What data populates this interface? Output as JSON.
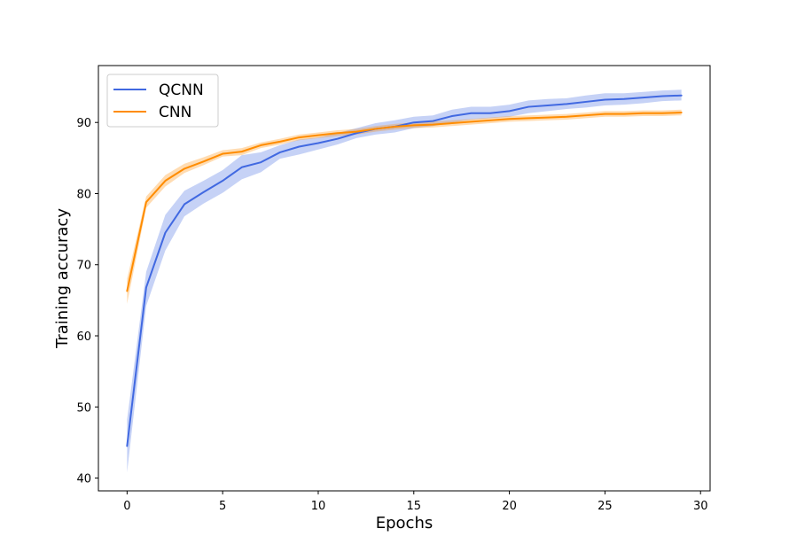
{
  "chart_data": {
    "type": "line",
    "xlabel": "Epochs",
    "ylabel": "Training accuracy",
    "xlim": [
      -1.5,
      30.5
    ],
    "ylim": [
      38.2,
      98.0
    ],
    "xticks": [
      0,
      5,
      10,
      15,
      20,
      25,
      30
    ],
    "yticks": [
      40,
      50,
      60,
      70,
      80,
      90
    ],
    "grid": false,
    "legend": "upper-left",
    "x": [
      0,
      1,
      2,
      3,
      4,
      5,
      6,
      7,
      8,
      9,
      10,
      11,
      12,
      13,
      14,
      15,
      16,
      17,
      18,
      19,
      20,
      21,
      22,
      23,
      24,
      25,
      26,
      27,
      28,
      29
    ],
    "series": [
      {
        "name": "QCNN",
        "color": "#4169E1",
        "values": [
          44.5,
          66.8,
          74.5,
          78.5,
          80.2,
          81.8,
          83.7,
          84.4,
          85.8,
          86.6,
          87.1,
          87.7,
          88.5,
          89.1,
          89.4,
          90.0,
          90.2,
          90.9,
          91.3,
          91.3,
          91.6,
          92.2,
          92.4,
          92.6,
          92.9,
          93.2,
          93.3,
          93.5,
          93.7,
          93.8
        ],
        "lower": [
          40.8,
          64.2,
          72.0,
          76.8,
          78.6,
          80.1,
          82.0,
          83.0,
          84.9,
          85.5,
          86.2,
          86.9,
          87.8,
          88.3,
          88.6,
          89.2,
          89.5,
          90.0,
          90.4,
          90.6,
          90.8,
          91.3,
          91.6,
          91.9,
          92.1,
          92.4,
          92.5,
          92.7,
          93.0,
          93.1
        ],
        "upper": [
          48.2,
          69.0,
          77.0,
          80.4,
          81.8,
          83.3,
          85.4,
          85.8,
          86.8,
          87.6,
          87.9,
          88.5,
          89.2,
          89.9,
          90.3,
          90.8,
          91.0,
          91.8,
          92.2,
          92.2,
          92.5,
          93.1,
          93.3,
          93.4,
          93.8,
          94.1,
          94.1,
          94.3,
          94.5,
          94.6
        ]
      },
      {
        "name": "CNN",
        "color": "#FF8C00",
        "values": [
          66.3,
          78.8,
          81.8,
          83.5,
          84.5,
          85.6,
          85.9,
          86.8,
          87.3,
          87.9,
          88.2,
          88.5,
          88.7,
          89.1,
          89.4,
          89.6,
          89.7,
          89.9,
          90.1,
          90.3,
          90.5,
          90.6,
          90.7,
          90.8,
          91.0,
          91.2,
          91.2,
          91.3,
          91.3,
          91.4
        ],
        "lower": [
          64.5,
          78.0,
          81.0,
          82.9,
          84.0,
          85.2,
          85.4,
          86.4,
          86.9,
          87.5,
          87.8,
          88.1,
          88.3,
          88.7,
          89.0,
          89.2,
          89.3,
          89.5,
          89.7,
          89.9,
          90.1,
          90.2,
          90.3,
          90.4,
          90.6,
          90.8,
          90.8,
          90.9,
          90.9,
          91.0
        ],
        "upper": [
          68.0,
          79.6,
          82.6,
          84.2,
          85.1,
          86.1,
          86.4,
          87.2,
          87.7,
          88.3,
          88.6,
          88.9,
          89.1,
          89.5,
          89.8,
          90.0,
          90.1,
          90.3,
          90.5,
          90.7,
          90.9,
          91.0,
          91.1,
          91.2,
          91.4,
          91.6,
          91.6,
          91.7,
          91.7,
          91.8
        ]
      }
    ]
  }
}
